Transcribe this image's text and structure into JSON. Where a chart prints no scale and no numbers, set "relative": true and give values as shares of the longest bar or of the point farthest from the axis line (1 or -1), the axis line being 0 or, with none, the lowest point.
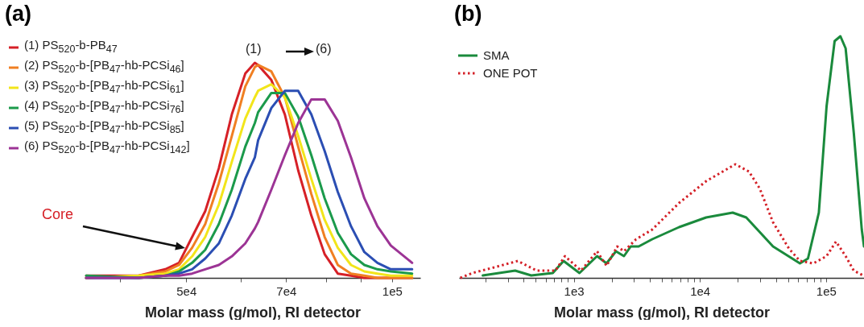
{
  "chart_data": [
    {
      "type": "line",
      "title": "(a)",
      "xlabel": "Molar mass (g/mol), RI detector",
      "relative": true,
      "log": "x",
      "legend": "top left",
      "xlim": [
        35500,
        110000
      ],
      "xticks": [
        {
          "value": 40000,
          "label": null
        },
        {
          "value": 50000,
          "label": "5e4"
        },
        {
          "value": 60000,
          "label": null
        },
        {
          "value": 70000,
          "label": "7e4"
        },
        {
          "value": 80000,
          "label": null
        },
        {
          "value": 90000,
          "label": null
        },
        {
          "value": 100000,
          "label": "1e5"
        }
      ],
      "annotations": [
        "(1)",
        "(6)",
        "Core"
      ],
      "x": [
        35700,
        42600,
        46600,
        48800,
        51000,
        53300,
        55800,
        58300,
        61000,
        63000,
        63700,
        66600,
        69700,
        72900,
        76200,
        79700,
        83300,
        87100,
        91100,
        95200,
        99600,
        107000
      ],
      "series": [
        {
          "name": "(1) PS$_{520}$-b-PB$_{47}$",
          "color": "#d62027",
          "values": [
            0.01,
            0.01,
            0.04,
            0.07,
            0.19,
            0.31,
            0.51,
            0.76,
            0.95,
            1,
            0.99,
            0.92,
            0.76,
            0.5,
            0.29,
            0.11,
            0.02,
            0.01,
            0,
            0,
            0,
            0
          ]
        },
        {
          "name": "(2) PS$_{520}$-b-[PB$_{47}$-hb-PCSi$_{46}$]",
          "color": "#f07f22",
          "values": [
            0,
            0.01,
            0.03,
            0.06,
            0.14,
            0.25,
            0.44,
            0.66,
            0.89,
            0.98,
            0.99,
            0.96,
            0.84,
            0.61,
            0.39,
            0.19,
            0.06,
            0.02,
            0.01,
            0,
            0,
            0
          ]
        },
        {
          "name": "(3) PS$_{520}$-b-[PB$_{47}$-hb-PCSi$_{61}$]",
          "color": "#f2e51a",
          "values": [
            0,
            0.01,
            0.02,
            0.04,
            0.1,
            0.19,
            0.34,
            0.54,
            0.74,
            0.84,
            0.87,
            0.9,
            0.84,
            0.66,
            0.46,
            0.27,
            0.14,
            0.06,
            0.03,
            0.02,
            0.01,
            0.01
          ]
        },
        {
          "name": "(4) PS$_{520}$-b-[PB$_{47}$-hb-PCSi$_{76}$]",
          "color": "#1b9a4b",
          "values": [
            0.01,
            0,
            0.01,
            0.03,
            0.07,
            0.13,
            0.25,
            0.41,
            0.61,
            0.72,
            0.77,
            0.86,
            0.86,
            0.75,
            0.57,
            0.37,
            0.21,
            0.11,
            0.06,
            0.04,
            0.03,
            0.02
          ]
        },
        {
          "name": "(5) PS$_{520}$-b-[PB$_{47}$-hb-PCSi$_{85}$]",
          "color": "#2b4eb3",
          "values": [
            0,
            0,
            0.01,
            0.02,
            0.04,
            0.09,
            0.16,
            0.29,
            0.46,
            0.56,
            0.64,
            0.79,
            0.87,
            0.87,
            0.76,
            0.59,
            0.4,
            0.24,
            0.12,
            0.07,
            0.04,
            0.04
          ]
        },
        {
          "name": "(6) PS$_{520}$-b-[PB$_{47}$-hb-PCSi$_{142}$]",
          "color": "#9c3495",
          "values": [
            0,
            0,
            0.01,
            0.01,
            0.02,
            0.04,
            0.06,
            0.1,
            0.16,
            0.23,
            0.26,
            0.41,
            0.57,
            0.72,
            0.83,
            0.83,
            0.73,
            0.56,
            0.37,
            0.24,
            0.15,
            0.07
          ]
        }
      ]
    },
    {
      "type": "line",
      "title": "(b)",
      "xlabel": "Molar mass (g/mol), RI detector",
      "relative": true,
      "log": "x",
      "legend": "top left",
      "xlim": [
        123,
        200000
      ],
      "xticks": [
        {
          "value": 200,
          "label": null
        },
        {
          "value": 300,
          "label": null
        },
        {
          "value": 400,
          "label": null
        },
        {
          "value": 500,
          "label": null
        },
        {
          "value": 600,
          "label": null
        },
        {
          "value": 700,
          "label": null
        },
        {
          "value": 800,
          "label": null
        },
        {
          "value": 900,
          "label": null
        },
        {
          "value": 1000,
          "label": "1e3"
        },
        {
          "value": 2000,
          "label": null
        },
        {
          "value": 3000,
          "label": null
        },
        {
          "value": 4000,
          "label": null
        },
        {
          "value": 5000,
          "label": null
        },
        {
          "value": 6000,
          "label": null
        },
        {
          "value": 7000,
          "label": null
        },
        {
          "value": 8000,
          "label": null
        },
        {
          "value": 9000,
          "label": null
        },
        {
          "value": 10000,
          "label": "1e4"
        },
        {
          "value": 20000,
          "label": null
        },
        {
          "value": 30000,
          "label": null
        },
        {
          "value": 40000,
          "label": null
        },
        {
          "value": 50000,
          "label": null
        },
        {
          "value": 60000,
          "label": null
        },
        {
          "value": 70000,
          "label": null
        },
        {
          "value": 80000,
          "label": null
        },
        {
          "value": 90000,
          "label": null
        },
        {
          "value": 100000,
          "label": "1e5"
        }
      ],
      "series": [
        {
          "name": "SMA",
          "color": "#1a8a3c",
          "line_style": "solid",
          "x": [
            190,
            343,
            460,
            682,
            830,
            1110,
            1530,
            1820,
            2160,
            2500,
            2830,
            3270,
            4190,
            6840,
            11200,
            18200,
            23300,
            38000,
            62100,
            71900,
            87700,
            101000,
            117000,
            130000,
            143000,
            166000,
            192000,
            200000
          ],
          "values": [
            0.01,
            0.03,
            0.01,
            0.02,
            0.07,
            0.02,
            0.09,
            0.06,
            0.11,
            0.09,
            0.13,
            0.13,
            0.16,
            0.21,
            0.25,
            0.27,
            0.25,
            0.13,
            0.06,
            0.08,
            0.27,
            0.71,
            0.98,
            1,
            0.95,
            0.6,
            0.2,
            0.13
          ]
        },
        {
          "name": "ONE POT",
          "color": "#d42027",
          "line_style": "dotted",
          "x": [
            126,
            157,
            221,
            360,
            508,
            716,
            851,
            1140,
            1530,
            1820,
            2210,
            2500,
            3120,
            4190,
            6840,
            11200,
            19100,
            24500,
            29800,
            38000,
            51000,
            62100,
            79400,
            101000,
            120000,
            143000,
            166000,
            197000
          ],
          "values": [
            0,
            0.02,
            0.04,
            0.07,
            0.03,
            0.03,
            0.09,
            0.03,
            0.11,
            0.05,
            0.13,
            0.11,
            0.16,
            0.2,
            0.31,
            0.4,
            0.47,
            0.44,
            0.37,
            0.23,
            0.12,
            0.07,
            0.06,
            0.09,
            0.15,
            0.09,
            0.03,
            0.01
          ]
        }
      ]
    }
  ]
}
